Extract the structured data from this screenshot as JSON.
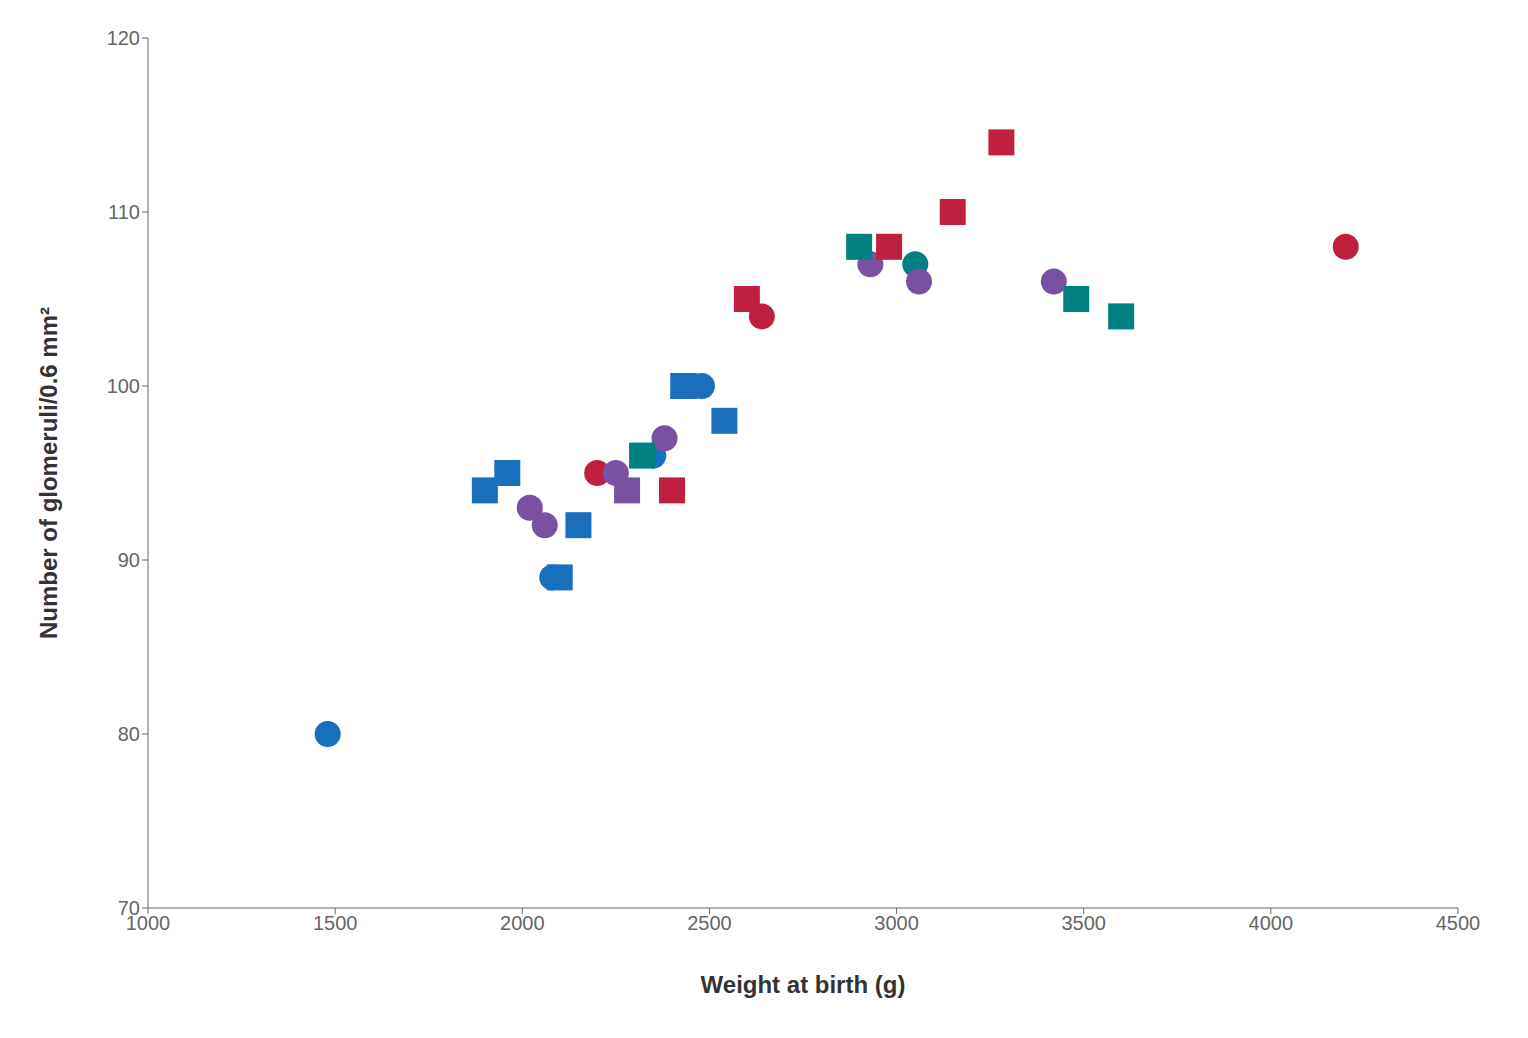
{
  "chart_data": {
    "type": "scatter",
    "xlabel": "Weight at birth (g)",
    "ylabel": "Number of glomeruli/0.6 mm²",
    "xlim": [
      1000,
      4500
    ],
    "ylim": [
      70,
      120
    ],
    "xticks": [
      1000,
      1500,
      2000,
      2500,
      3000,
      3500,
      4000,
      4500
    ],
    "yticks": [
      70,
      80,
      90,
      100,
      110,
      120
    ],
    "grid": false,
    "series": [
      {
        "marker": "circle",
        "x": [
          1480,
          2020,
          2060,
          2080,
          2200,
          2250,
          2350,
          2380,
          2460,
          2480,
          2640,
          2930,
          3050,
          3060,
          3420,
          4200
        ],
        "values": [
          80,
          93,
          92,
          89,
          95,
          95,
          96,
          97,
          100,
          100,
          104,
          107,
          107,
          106,
          106,
          108
        ],
        "colors": [
          "#1a6fbd",
          "#7a50a0",
          "#7a50a0",
          "#1a6fbd",
          "#c02040",
          "#7a50a0",
          "#1a6fbd",
          "#7a50a0",
          "#7a50a0",
          "#1a6fbd",
          "#c02040",
          "#7a50a0",
          "#008080",
          "#7a50a0",
          "#7a50a0",
          "#c02040"
        ]
      },
      {
        "marker": "square",
        "x": [
          1900,
          1960,
          2100,
          2150,
          2280,
          2320,
          2400,
          2430,
          2540,
          2600,
          2900,
          2980,
          3150,
          3280,
          3480,
          3600
        ],
        "values": [
          94,
          95,
          89,
          92,
          94,
          96,
          94,
          100,
          98,
          105,
          108,
          108,
          110,
          114,
          105,
          104
        ],
        "colors": [
          "#1a6fbd",
          "#1a6fbd",
          "#1a6fbd",
          "#1a6fbd",
          "#7a50a0",
          "#008080",
          "#c02040",
          "#1a6fbd",
          "#1a6fbd",
          "#c02040",
          "#008080",
          "#c02040",
          "#c02040",
          "#c02040",
          "#008080",
          "#008080"
        ]
      }
    ]
  }
}
